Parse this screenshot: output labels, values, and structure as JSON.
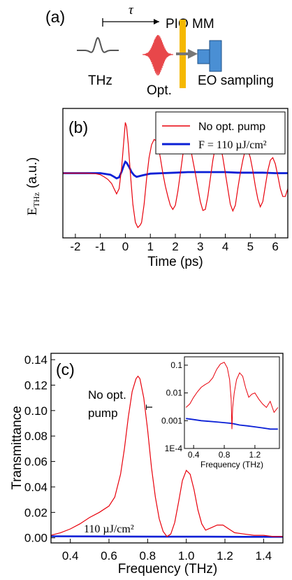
{
  "panel_a": {
    "label": "(a)",
    "tau_label": "τ",
    "sample_label": "PIO MM",
    "thz_label": "THz",
    "opt_label": "Opt.",
    "detector_label": "EO sampling",
    "colors": {
      "thz_pulse": "#555555",
      "opt_pulse": "#e8474a",
      "sample": "#f5b800",
      "detector": "#4a8fd4",
      "arrow": "#777777"
    }
  },
  "chart_data": [
    {
      "id": "b",
      "type": "line",
      "panel_label": "(b)",
      "title": "",
      "xlabel": "Time (ps)",
      "ylabel": "E",
      "ylabel_sub": "THz",
      "ylabel_unit": "(a.u.)",
      "xlim": [
        -2.5,
        6.5
      ],
      "ylim": [
        -1.25,
        1.25
      ],
      "xticks": [
        -2,
        -1,
        0,
        1,
        2,
        3,
        4,
        5,
        6
      ],
      "xtick_labels": [
        "-2",
        "-1",
        "0",
        "1",
        "2",
        "3",
        "4",
        "5",
        "6"
      ],
      "legend": {
        "position": "top-right"
      },
      "series": [
        {
          "name": "No opt. pump",
          "color": "#e8000b",
          "x": [
            -2.5,
            -1.6,
            -1.2,
            -1.0,
            -0.85,
            -0.7,
            -0.55,
            -0.45,
            -0.35,
            -0.25,
            -0.15,
            -0.05,
            0.0,
            0.05,
            0.12,
            0.2,
            0.3,
            0.4,
            0.5,
            0.6,
            0.65,
            0.75,
            0.85,
            0.95,
            1.05,
            1.15,
            1.25,
            1.3,
            1.4,
            1.5,
            1.6,
            1.7,
            1.8,
            1.9,
            2.0,
            2.1,
            2.2,
            2.3,
            2.4,
            2.5,
            2.6,
            2.7,
            2.8,
            2.9,
            3.0,
            3.1,
            3.2,
            3.3,
            3.4,
            3.5,
            3.6,
            3.7,
            3.8,
            3.9,
            4.0,
            4.1,
            4.2,
            4.3,
            4.4,
            4.5,
            4.6,
            4.7,
            4.8,
            4.9,
            5.0,
            5.1,
            5.2,
            5.3,
            5.4,
            5.5,
            5.6,
            5.7,
            5.8,
            5.9,
            6.0,
            6.1,
            6.2,
            6.3,
            6.4,
            6.5
          ],
          "values": [
            0.0,
            0.0,
            -0.01,
            -0.03,
            -0.07,
            -0.12,
            -0.2,
            -0.3,
            -0.4,
            -0.3,
            0.1,
            0.7,
            0.98,
            0.9,
            0.55,
            0.0,
            -0.6,
            -0.95,
            -1.05,
            -1.0,
            -0.95,
            -0.6,
            -0.1,
            0.3,
            0.55,
            0.65,
            0.62,
            0.55,
            0.3,
            0.0,
            -0.25,
            -0.45,
            -0.62,
            -0.7,
            -0.62,
            -0.35,
            0.0,
            0.35,
            0.55,
            0.6,
            0.5,
            0.25,
            0.0,
            -0.28,
            -0.55,
            -0.72,
            -0.7,
            -0.45,
            -0.1,
            0.25,
            0.5,
            0.62,
            0.55,
            0.3,
            0.0,
            -0.3,
            -0.6,
            -0.73,
            -0.62,
            -0.3,
            0.0,
            0.25,
            0.45,
            0.45,
            0.3,
            0.05,
            -0.25,
            -0.5,
            -0.65,
            -0.55,
            -0.25,
            0.05,
            0.25,
            0.3,
            0.18,
            -0.05,
            -0.3,
            -0.45,
            -0.45,
            -0.3
          ]
        },
        {
          "name": "F = 110 µJ/cm²",
          "color": "#0a1fd6",
          "x": [
            -2.5,
            -1.0,
            -0.6,
            -0.45,
            -0.35,
            -0.25,
            -0.15,
            -0.05,
            0.0,
            0.05,
            0.15,
            0.25,
            0.35,
            0.45,
            0.55,
            0.7,
            1.0,
            1.5,
            2.0,
            2.5,
            3.0,
            3.5,
            4.0,
            4.5,
            5.0,
            5.5,
            6.0,
            6.5
          ],
          "values": [
            0.0,
            0.0,
            -0.03,
            -0.07,
            -0.1,
            -0.08,
            0.03,
            0.17,
            0.22,
            0.2,
            0.12,
            0.02,
            -0.04,
            -0.07,
            -0.06,
            -0.04,
            -0.01,
            0.0,
            0.01,
            0.02,
            0.02,
            0.02,
            0.02,
            0.01,
            0.01,
            0.01,
            0.0,
            0.0
          ]
        }
      ]
    },
    {
      "id": "c",
      "type": "line",
      "panel_label": "(c)",
      "title": "",
      "xlabel": "Frequency (THz)",
      "ylabel": "Transmittance",
      "xlim": [
        0.3,
        1.5
      ],
      "ylim": [
        -0.004,
        0.145
      ],
      "xticks": [
        0.4,
        0.6,
        0.8,
        1.0,
        1.2,
        1.4
      ],
      "xtick_labels": [
        "0.4",
        "0.6",
        "0.8",
        "1.0",
        "1.2",
        "1.4"
      ],
      "yticks": [
        0.0,
        0.02,
        0.04,
        0.06,
        0.08,
        0.1,
        0.12,
        0.14
      ],
      "ytick_labels": [
        "0.00",
        "0.02",
        "0.04",
        "0.06",
        "0.08",
        "0.10",
        "0.12",
        "0.14"
      ],
      "annotations": [
        "No opt.",
        "pump",
        "110 µJ/cm²"
      ],
      "series": [
        {
          "name": "No opt. pump",
          "color": "#e8000b",
          "x": [
            0.3,
            0.35,
            0.4,
            0.45,
            0.5,
            0.55,
            0.6,
            0.63,
            0.66,
            0.68,
            0.7,
            0.72,
            0.74,
            0.75,
            0.76,
            0.78,
            0.8,
            0.82,
            0.84,
            0.86,
            0.88,
            0.9,
            0.92,
            0.94,
            0.96,
            0.98,
            1.0,
            1.02,
            1.04,
            1.06,
            1.08,
            1.1,
            1.13,
            1.16,
            1.19,
            1.22,
            1.25,
            1.3,
            1.35,
            1.4,
            1.45,
            1.5
          ],
          "values": [
            0.002,
            0.004,
            0.007,
            0.011,
            0.016,
            0.02,
            0.025,
            0.032,
            0.05,
            0.07,
            0.095,
            0.115,
            0.125,
            0.127,
            0.125,
            0.11,
            0.085,
            0.055,
            0.032,
            0.015,
            0.005,
            0.001,
            0.003,
            0.012,
            0.028,
            0.045,
            0.053,
            0.05,
            0.038,
            0.022,
            0.011,
            0.006,
            0.008,
            0.01,
            0.01,
            0.007,
            0.004,
            0.003,
            0.002,
            0.002,
            0.001,
            0.001
          ]
        },
        {
          "name": "110 µJ/cm²",
          "color": "#0a1fd6",
          "x": [
            0.3,
            0.5,
            0.7,
            0.9,
            1.1,
            1.3,
            1.5
          ],
          "values": [
            0.0012,
            0.0011,
            0.001,
            0.0009,
            0.0009,
            0.0008,
            0.0008
          ]
        }
      ]
    },
    {
      "id": "c_inset",
      "type": "line",
      "title": "",
      "xlabel": "Frequency (THz)",
      "ylabel": "T",
      "yscale": "log",
      "xlim": [
        0.28,
        1.52
      ],
      "ylim": [
        0.0001,
        0.2
      ],
      "xticks": [
        0.4,
        0.8,
        1.2
      ],
      "xtick_labels": [
        "0.4",
        "0.8",
        "1.2"
      ],
      "yticks": [
        0.0001,
        0.001,
        0.01,
        0.1
      ],
      "ytick_labels": [
        "1E-4",
        "0.001",
        "0.01",
        "0.1"
      ],
      "series": [
        {
          "name": "No opt. pump",
          "color": "#e8000b",
          "x": [
            0.3,
            0.35,
            0.4,
            0.45,
            0.5,
            0.55,
            0.6,
            0.65,
            0.7,
            0.75,
            0.8,
            0.84,
            0.87,
            0.89,
            0.9,
            0.91,
            0.93,
            0.96,
            1.0,
            1.04,
            1.08,
            1.12,
            1.16,
            1.2,
            1.25,
            1.3,
            1.35,
            1.4,
            1.45,
            1.5
          ],
          "values": [
            0.003,
            0.004,
            0.007,
            0.011,
            0.016,
            0.02,
            0.024,
            0.035,
            0.07,
            0.11,
            0.127,
            0.08,
            0.03,
            0.006,
            0.0005,
            0.003,
            0.01,
            0.03,
            0.053,
            0.04,
            0.015,
            0.007,
            0.009,
            0.01,
            0.006,
            0.004,
            0.003,
            0.005,
            0.002,
            0.003
          ]
        },
        {
          "name": "110 µJ/cm²",
          "color": "#0a1fd6",
          "x": [
            0.3,
            0.4,
            0.5,
            0.6,
            0.7,
            0.8,
            0.9,
            1.0,
            1.1,
            1.2,
            1.3,
            1.4,
            1.5
          ],
          "values": [
            0.0012,
            0.0011,
            0.001,
            0.00095,
            0.0009,
            0.00085,
            0.0008,
            0.0007,
            0.00065,
            0.0006,
            0.00055,
            0.0005,
            0.0005
          ]
        }
      ]
    }
  ]
}
